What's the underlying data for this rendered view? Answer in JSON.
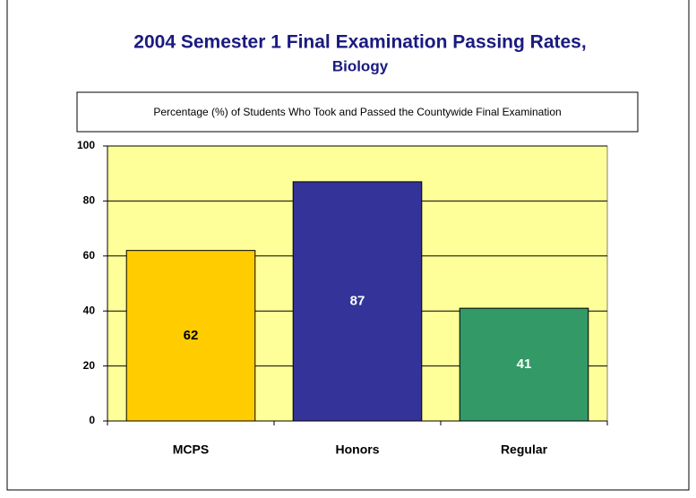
{
  "chart_data": {
    "type": "bar",
    "title": "2004 Semester 1 Final Examination Passing Rates,",
    "subtitle": "Biology",
    "annotation": "Percentage (%) of Students Who Took and Passed the Countywide Final Examination",
    "categories": [
      "MCPS",
      "Honors",
      "Regular"
    ],
    "values": [
      62,
      87,
      41
    ],
    "colors": [
      "#ffcc00",
      "#333399",
      "#339966"
    ],
    "label_colors": [
      "#000000",
      "#ffffff",
      "#ffffff"
    ],
    "ylim": [
      0,
      100
    ],
    "yticks": [
      0,
      20,
      40,
      60,
      80,
      100
    ],
    "grid": true,
    "plot_background": "#ffff99"
  }
}
